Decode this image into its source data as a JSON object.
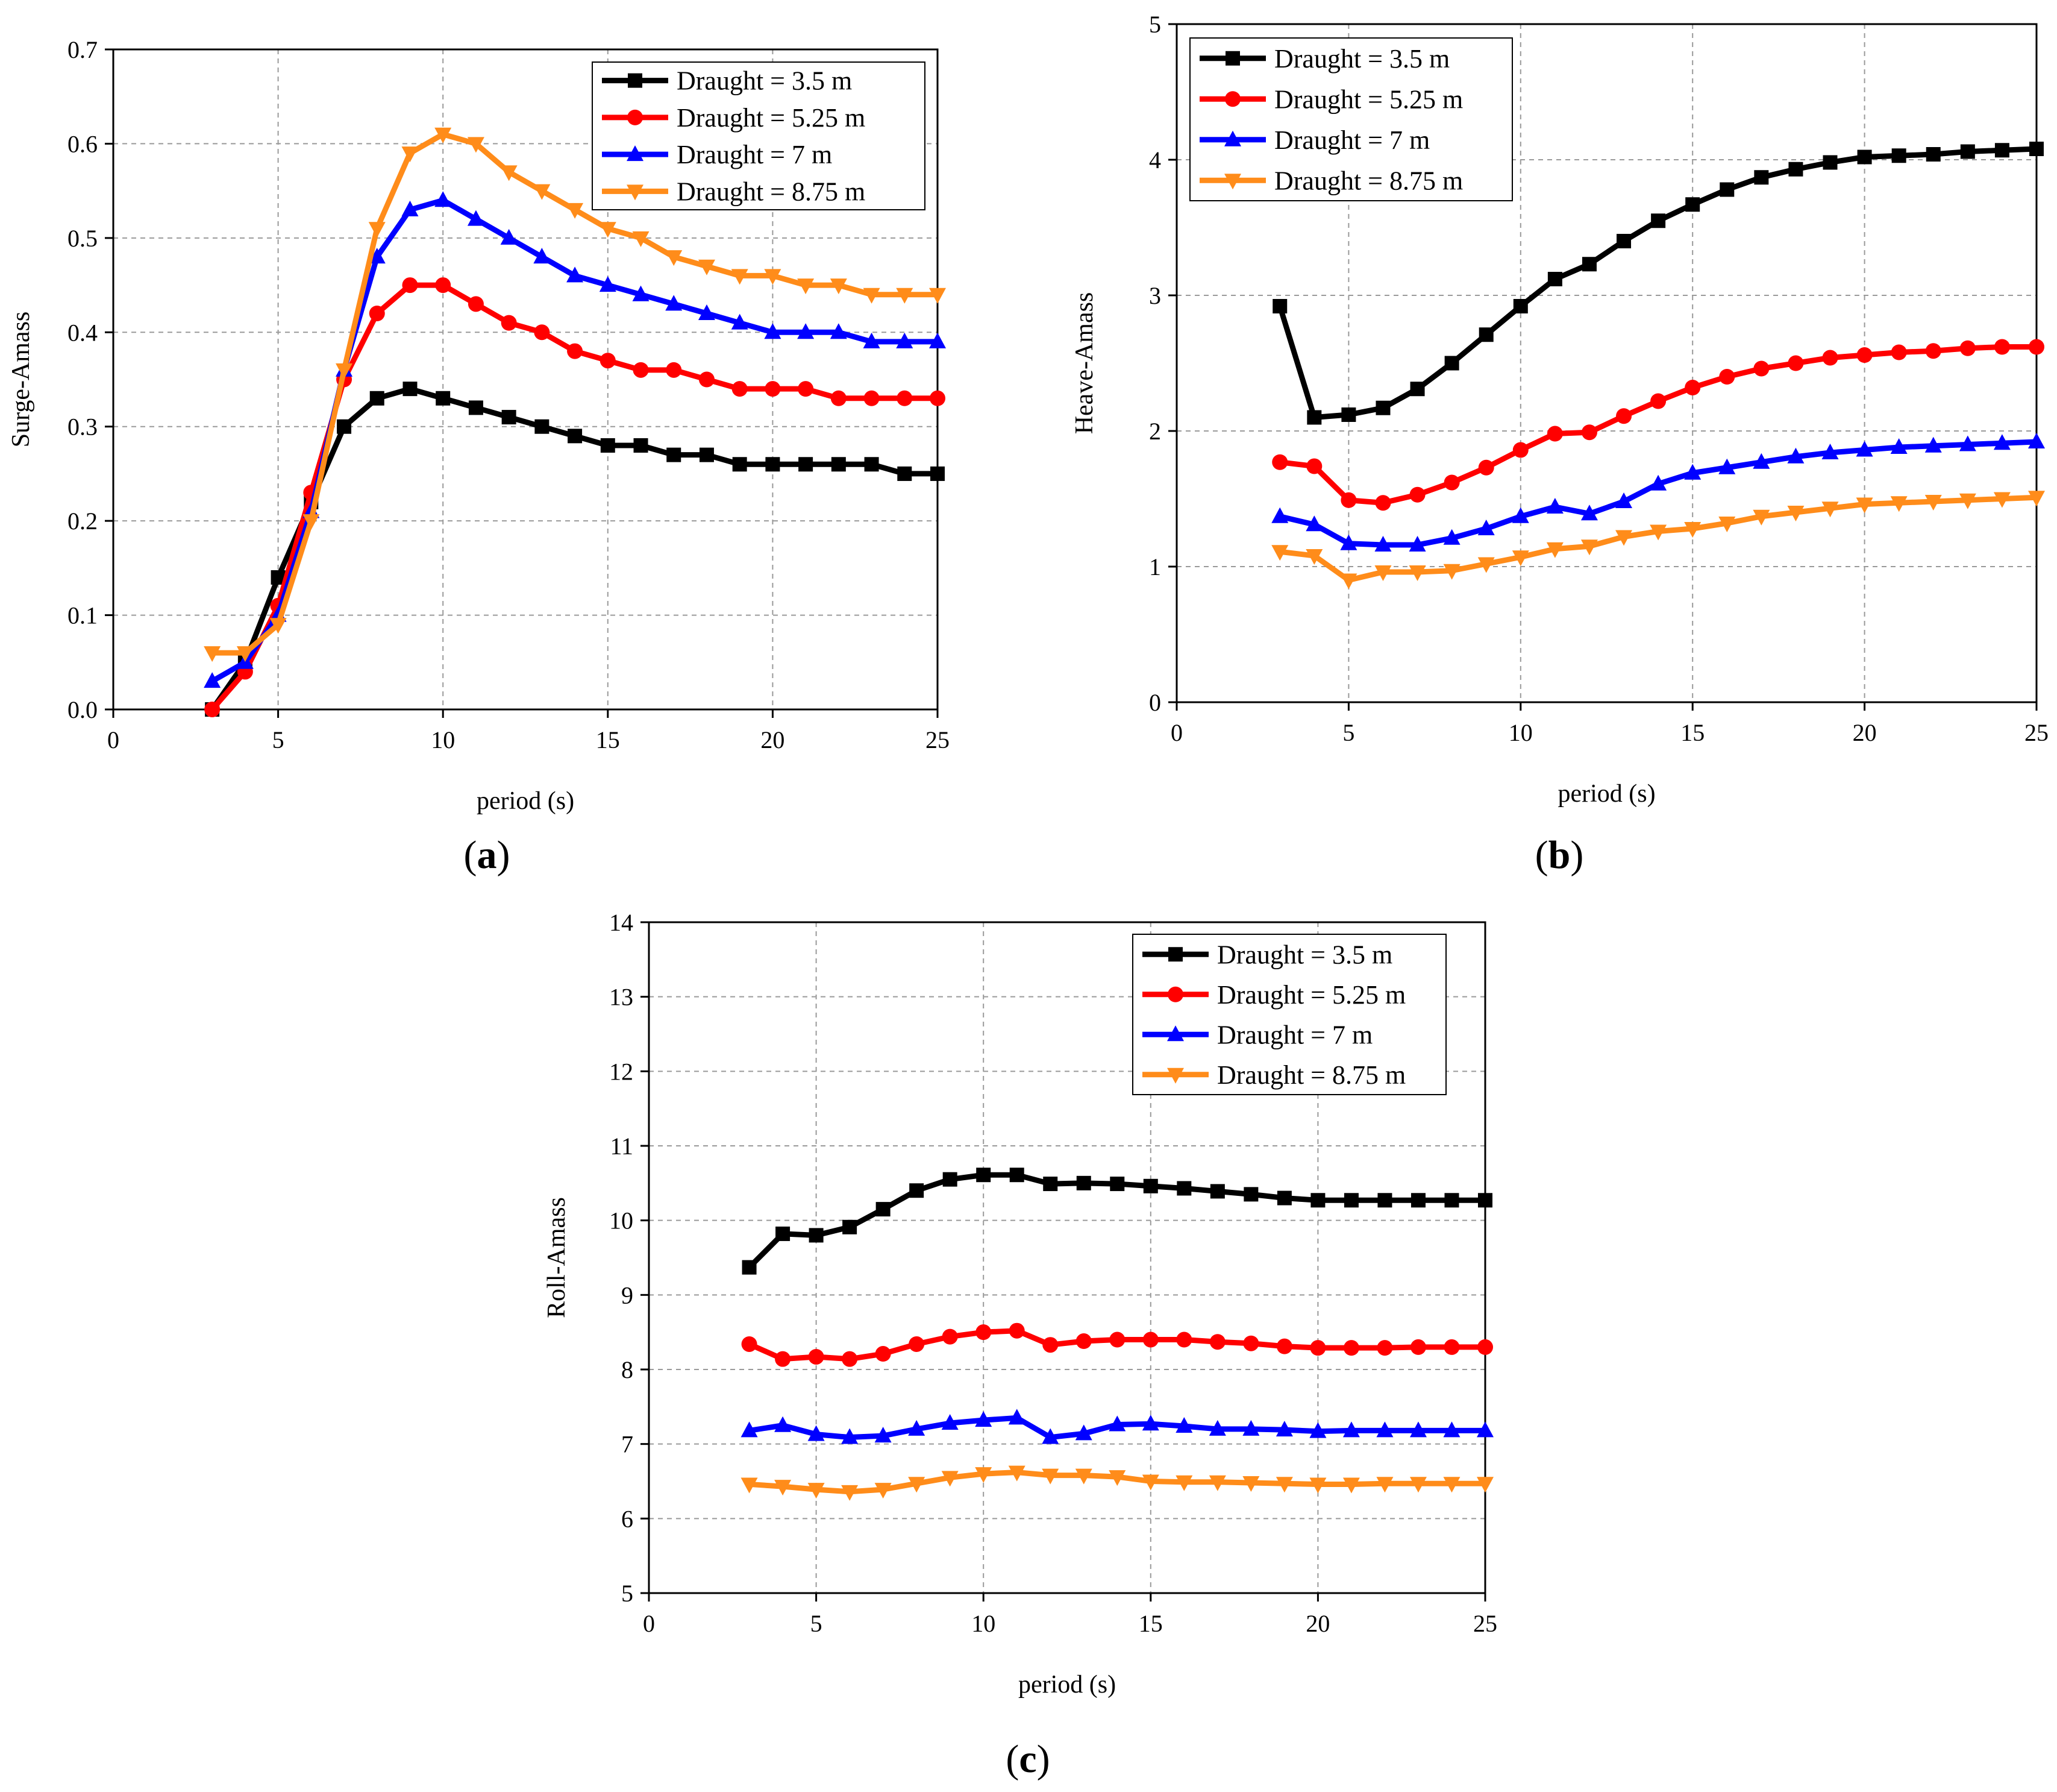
{
  "colors": {
    "Draught = 3.5 m": "#000000",
    "Draught = 5.25 m": "#ff0000",
    "Draught = 7 m": "#0000ff",
    "Draught = 8.75 m": "#ff8c1a"
  },
  "chart_data": [
    {
      "type": "line",
      "panel": "(a)",
      "panel_letter": "a",
      "xlabel": "period (s)",
      "ylabel": "Surge-Amass",
      "xlim": [
        0,
        25
      ],
      "ylim": [
        0,
        0.7
      ],
      "xticks": [
        0,
        5,
        10,
        15,
        20,
        25
      ],
      "xtick_labels": [
        "0",
        "5",
        "10",
        "15",
        "20",
        "25"
      ],
      "yticks": [
        0,
        0.1,
        0.2,
        0.3,
        0.4,
        0.5,
        0.6,
        0.7
      ],
      "ytick_labels": [
        "0.0",
        "0.1",
        "0.2",
        "0.3",
        "0.4",
        "0.5",
        "0.6",
        "0.7"
      ],
      "grid": true,
      "legend_position": "top-right",
      "x": [
        3,
        4,
        5,
        6,
        7,
        8,
        9,
        10,
        11,
        12,
        13,
        14,
        15,
        16,
        17,
        18,
        19,
        20,
        21,
        22,
        23,
        24,
        25
      ],
      "series": [
        {
          "name": "Draught = 3.5 m",
          "marker": "square",
          "values": [
            0.0,
            0.05,
            0.14,
            0.22,
            0.3,
            0.33,
            0.34,
            0.33,
            0.32,
            0.31,
            0.3,
            0.29,
            0.28,
            0.28,
            0.27,
            0.27,
            0.26,
            0.26,
            0.26,
            0.26,
            0.26,
            0.25,
            0.25
          ]
        },
        {
          "name": "Draught = 5.25 m",
          "marker": "circle",
          "values": [
            0.0,
            0.04,
            0.11,
            0.23,
            0.35,
            0.42,
            0.45,
            0.45,
            0.43,
            0.41,
            0.4,
            0.38,
            0.37,
            0.36,
            0.36,
            0.35,
            0.34,
            0.34,
            0.34,
            0.33,
            0.33,
            0.33,
            0.33
          ]
        },
        {
          "name": "Draught = 7 m",
          "marker": "triangle-up",
          "values": [
            0.03,
            0.05,
            0.1,
            0.21,
            0.36,
            0.48,
            0.53,
            0.54,
            0.52,
            0.5,
            0.48,
            0.46,
            0.45,
            0.44,
            0.43,
            0.42,
            0.41,
            0.4,
            0.4,
            0.4,
            0.39,
            0.39,
            0.39
          ]
        },
        {
          "name": "Draught = 8.75 m",
          "marker": "triangle-down",
          "values": [
            0.06,
            0.06,
            0.09,
            0.2,
            0.36,
            0.51,
            0.59,
            0.61,
            0.6,
            0.57,
            0.55,
            0.53,
            0.51,
            0.5,
            0.48,
            0.47,
            0.46,
            0.46,
            0.45,
            0.45,
            0.44,
            0.44,
            0.44
          ]
        }
      ]
    },
    {
      "type": "line",
      "panel": "(b)",
      "panel_letter": "b",
      "xlabel": "period (s)",
      "ylabel": "Heave-Amass",
      "xlim": [
        0,
        25
      ],
      "ylim": [
        0,
        5
      ],
      "xticks": [
        0,
        5,
        10,
        15,
        20,
        25
      ],
      "xtick_labels": [
        "0",
        "5",
        "10",
        "15",
        "20",
        "25"
      ],
      "yticks": [
        0,
        1,
        2,
        3,
        4,
        5
      ],
      "ytick_labels": [
        "0",
        "1",
        "2",
        "3",
        "4",
        "5"
      ],
      "grid": true,
      "legend_position": "top-left",
      "x": [
        3,
        4,
        5,
        6,
        7,
        8,
        9,
        10,
        11,
        12,
        13,
        14,
        15,
        16,
        17,
        18,
        19,
        20,
        21,
        22,
        23,
        24,
        25
      ],
      "series": [
        {
          "name": "Draught = 3.5 m",
          "marker": "square",
          "values": [
            2.92,
            2.1,
            2.12,
            2.17,
            2.31,
            2.5,
            2.71,
            2.92,
            3.12,
            3.23,
            3.4,
            3.55,
            3.67,
            3.78,
            3.87,
            3.93,
            3.98,
            4.02,
            4.03,
            4.04,
            4.06,
            4.07,
            4.08
          ]
        },
        {
          "name": "Draught = 5.25 m",
          "marker": "circle",
          "values": [
            1.77,
            1.74,
            1.49,
            1.47,
            1.53,
            1.62,
            1.73,
            1.86,
            1.98,
            1.99,
            2.11,
            2.22,
            2.32,
            2.4,
            2.46,
            2.5,
            2.54,
            2.56,
            2.58,
            2.59,
            2.61,
            2.62,
            2.62
          ]
        },
        {
          "name": "Draught = 7 m",
          "marker": "triangle-up",
          "values": [
            1.37,
            1.31,
            1.17,
            1.16,
            1.16,
            1.21,
            1.28,
            1.37,
            1.44,
            1.39,
            1.48,
            1.61,
            1.69,
            1.73,
            1.77,
            1.81,
            1.84,
            1.86,
            1.88,
            1.89,
            1.9,
            1.91,
            1.92
          ]
        },
        {
          "name": "Draught = 8.75 m",
          "marker": "triangle-down",
          "values": [
            1.11,
            1.08,
            0.9,
            0.96,
            0.96,
            0.97,
            1.02,
            1.07,
            1.13,
            1.15,
            1.22,
            1.26,
            1.28,
            1.32,
            1.37,
            1.4,
            1.43,
            1.46,
            1.47,
            1.48,
            1.49,
            1.5,
            1.51
          ]
        }
      ]
    },
    {
      "type": "line",
      "panel": "(c)",
      "panel_letter": "c",
      "xlabel": "period (s)",
      "ylabel": "Roll-Amass",
      "xlim": [
        0,
        25
      ],
      "ylim": [
        5,
        14
      ],
      "xticks": [
        0,
        5,
        10,
        15,
        20,
        25
      ],
      "xtick_labels": [
        "0",
        "5",
        "10",
        "15",
        "20",
        "25"
      ],
      "yticks": [
        5,
        6,
        7,
        8,
        9,
        10,
        11,
        12,
        13,
        14
      ],
      "ytick_labels": [
        "5",
        "6",
        "7",
        "8",
        "9",
        "10",
        "11",
        "12",
        "13",
        "14"
      ],
      "grid": true,
      "legend_position": "top-right",
      "x": [
        3,
        4,
        5,
        6,
        7,
        8,
        9,
        10,
        11,
        12,
        13,
        14,
        15,
        16,
        17,
        18,
        19,
        20,
        21,
        22,
        23,
        24,
        25
      ],
      "series": [
        {
          "name": "Draught = 3.5 m",
          "marker": "square",
          "values": [
            9.37,
            9.82,
            9.8,
            9.91,
            10.15,
            10.4,
            10.55,
            10.61,
            10.61,
            10.49,
            10.5,
            10.49,
            10.46,
            10.43,
            10.39,
            10.35,
            10.3,
            10.27,
            10.27,
            10.27,
            10.27,
            10.27,
            10.27
          ]
        },
        {
          "name": "Draught = 5.25 m",
          "marker": "circle",
          "values": [
            8.34,
            8.14,
            8.17,
            8.14,
            8.21,
            8.34,
            8.44,
            8.5,
            8.52,
            8.33,
            8.38,
            8.4,
            8.4,
            8.4,
            8.37,
            8.35,
            8.31,
            8.29,
            8.29,
            8.29,
            8.3,
            8.3,
            8.3
          ]
        },
        {
          "name": "Draught = 7 m",
          "marker": "triangle-up",
          "values": [
            7.18,
            7.25,
            7.13,
            7.09,
            7.11,
            7.2,
            7.28,
            7.32,
            7.35,
            7.09,
            7.14,
            7.26,
            7.27,
            7.24,
            7.2,
            7.2,
            7.19,
            7.17,
            7.18,
            7.18,
            7.18,
            7.18,
            7.18
          ]
        },
        {
          "name": "Draught = 8.75 m",
          "marker": "triangle-down",
          "values": [
            6.46,
            6.43,
            6.39,
            6.36,
            6.39,
            6.47,
            6.55,
            6.6,
            6.62,
            6.58,
            6.58,
            6.56,
            6.5,
            6.49,
            6.49,
            6.48,
            6.47,
            6.46,
            6.46,
            6.47,
            6.47,
            6.47,
            6.47
          ]
        }
      ]
    }
  ]
}
